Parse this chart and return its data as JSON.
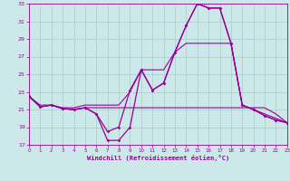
{
  "bg_color": "#cce8e8",
  "grid_color": "#aacccc",
  "line_color": "#990099",
  "xlabel": "Windchill (Refroidissement éolien,°C)",
  "hours": [
    0,
    1,
    2,
    3,
    4,
    5,
    6,
    7,
    8,
    9,
    10,
    11,
    12,
    13,
    14,
    15,
    16,
    17,
    18,
    19,
    20,
    21,
    22,
    23
  ],
  "series_temp": [
    22.5,
    21.3,
    21.5,
    21.1,
    21.0,
    21.2,
    20.5,
    17.5,
    17.5,
    19.0,
    25.5,
    23.2,
    24.0,
    27.5,
    30.5,
    33.0,
    32.5,
    32.5,
    28.5,
    21.5,
    21.0,
    20.3,
    19.8,
    19.5
  ],
  "series_wc": [
    22.5,
    21.3,
    21.5,
    21.1,
    21.0,
    21.2,
    20.5,
    18.5,
    19.0,
    23.2,
    25.5,
    23.2,
    24.0,
    27.5,
    30.5,
    33.0,
    32.5,
    32.5,
    28.5,
    21.5,
    21.0,
    20.3,
    19.8,
    19.5
  ],
  "series_flat1": [
    22.5,
    21.3,
    21.5,
    21.1,
    21.0,
    21.2,
    21.2,
    21.2,
    21.2,
    21.2,
    21.2,
    21.2,
    21.2,
    21.2,
    21.2,
    21.2,
    21.2,
    21.2,
    21.2,
    21.2,
    21.2,
    21.2,
    20.5,
    19.5
  ],
  "series_flat2": [
    22.5,
    21.5,
    21.5,
    21.2,
    21.2,
    21.5,
    21.5,
    21.5,
    21.5,
    23.0,
    25.5,
    25.5,
    25.5,
    27.5,
    28.5,
    28.5,
    28.5,
    28.5,
    28.5,
    21.5,
    21.0,
    20.5,
    20.0,
    19.5
  ],
  "ylim": [
    17,
    33
  ],
  "xlim": [
    0,
    23
  ],
  "yticks": [
    17,
    19,
    21,
    23,
    25,
    27,
    29,
    31,
    33
  ],
  "xticks": [
    0,
    1,
    2,
    3,
    4,
    5,
    6,
    7,
    8,
    9,
    10,
    11,
    12,
    13,
    14,
    15,
    16,
    17,
    18,
    19,
    20,
    21,
    22,
    23
  ]
}
